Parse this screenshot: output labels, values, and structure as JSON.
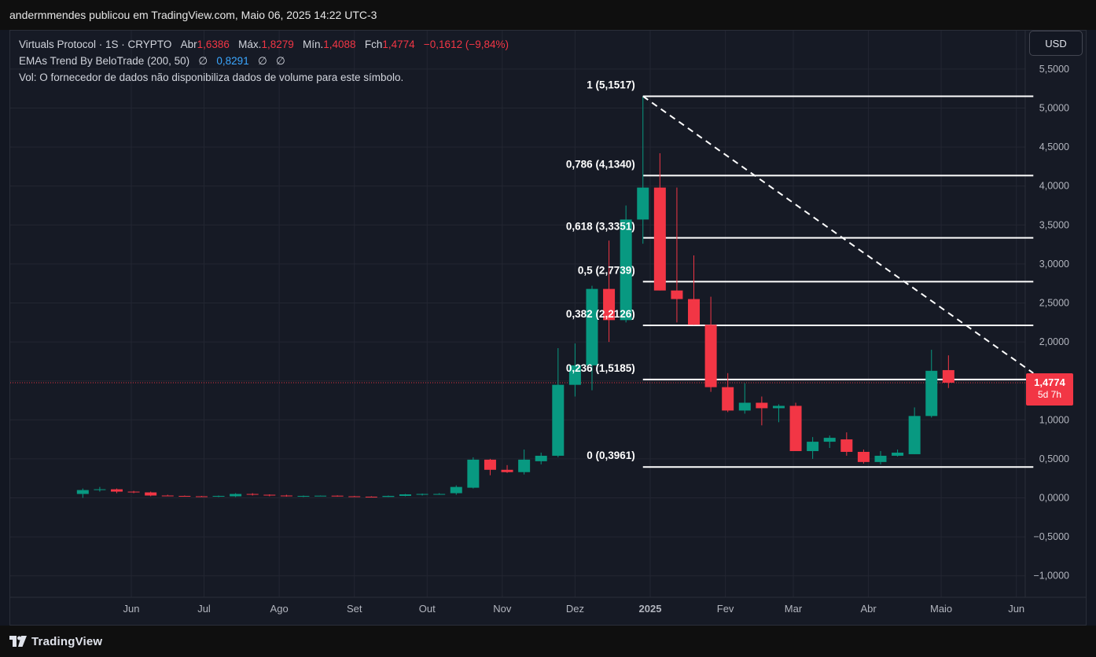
{
  "header": {
    "title": "andermmendes publicou em TradingView.com, Maio 06, 2025 14:22 UTC-3"
  },
  "legend": {
    "symbol": "Virtuals Protocol · 1S · CRYPTO",
    "open_label": "Abr",
    "open": "1,6386",
    "high_label": "Máx.",
    "high": "1,8279",
    "low_label": "Mín.",
    "low": "1,4088",
    "close_label": "Fch",
    "close": "1,4774",
    "change": "−0,1612 (−9,84%)",
    "indicator": "EMAs Trend By BeloTrade (200, 50)",
    "ind_v1": "∅",
    "ind_v2": "0,8291",
    "ind_v3": "∅",
    "ind_v4": "∅",
    "volume_note": "Vol: O fornecedor de dados não disponibiliza dados de volume para este símbolo."
  },
  "currency_button": "USD",
  "price_label": {
    "price": "1,4774",
    "countdown": "5d 7h"
  },
  "brand": "TradingView",
  "colors": {
    "up": "#089981",
    "down": "#f23645",
    "background": "#161a25",
    "grid": "#232632",
    "fib_line": "#ffffff"
  },
  "chart_data": {
    "type": "candlestick",
    "interval": "1 week",
    "y_axis": {
      "min": -1.3,
      "max": 5.9,
      "ticks": [
        "5,5000",
        "5,0000",
        "4,5000",
        "4,0000",
        "3,5000",
        "3,0000",
        "2,5000",
        "2,0000",
        "1,5000",
        "1,0000",
        "0,5000",
        "0,0000",
        "−0,5000",
        "−1,0000"
      ],
      "tick_values": [
        5.5,
        5.0,
        4.5,
        4.0,
        3.5,
        3.0,
        2.5,
        2.0,
        1.5,
        1.0,
        0.5,
        0.0,
        -0.5,
        -1.0
      ]
    },
    "x_axis": {
      "labels": [
        {
          "text": "Jun",
          "date": "2024-06-01"
        },
        {
          "text": "Jul",
          "date": "2024-07-01"
        },
        {
          "text": "Ago",
          "date": "2024-08-01"
        },
        {
          "text": "Set",
          "date": "2024-09-01"
        },
        {
          "text": "Out",
          "date": "2024-10-01"
        },
        {
          "text": "Nov",
          "date": "2024-11-01"
        },
        {
          "text": "Dez",
          "date": "2024-12-01"
        },
        {
          "text": "2025",
          "date": "2025-01-01",
          "bold": true
        },
        {
          "text": "Fev",
          "date": "2025-02-01"
        },
        {
          "text": "Mar",
          "date": "2025-03-01"
        },
        {
          "text": "Abr",
          "date": "2025-04-01"
        },
        {
          "text": "Maio",
          "date": "2025-05-01"
        },
        {
          "text": "Jun",
          "date": "2025-06-01"
        }
      ]
    },
    "candles": [
      {
        "date": "2024-05-12",
        "o": 0.05,
        "h": 0.12,
        "l": 0.0,
        "c": 0.1
      },
      {
        "date": "2024-05-19",
        "o": 0.1,
        "h": 0.14,
        "l": 0.08,
        "c": 0.11
      },
      {
        "date": "2024-05-26",
        "o": 0.11,
        "h": 0.12,
        "l": 0.06,
        "c": 0.08
      },
      {
        "date": "2024-06-02",
        "o": 0.08,
        "h": 0.09,
        "l": 0.06,
        "c": 0.07
      },
      {
        "date": "2024-06-09",
        "o": 0.07,
        "h": 0.08,
        "l": 0.02,
        "c": 0.03
      },
      {
        "date": "2024-06-16",
        "o": 0.03,
        "h": 0.04,
        "l": 0.02,
        "c": 0.025
      },
      {
        "date": "2024-06-23",
        "o": 0.025,
        "h": 0.03,
        "l": 0.015,
        "c": 0.02
      },
      {
        "date": "2024-06-30",
        "o": 0.02,
        "h": 0.025,
        "l": 0.01,
        "c": 0.015
      },
      {
        "date": "2024-07-07",
        "o": 0.015,
        "h": 0.03,
        "l": 0.01,
        "c": 0.025
      },
      {
        "date": "2024-07-14",
        "o": 0.02,
        "h": 0.06,
        "l": 0.01,
        "c": 0.05
      },
      {
        "date": "2024-07-21",
        "o": 0.05,
        "h": 0.06,
        "l": 0.03,
        "c": 0.04
      },
      {
        "date": "2024-07-28",
        "o": 0.04,
        "h": 0.045,
        "l": 0.02,
        "c": 0.03
      },
      {
        "date": "2024-08-04",
        "o": 0.03,
        "h": 0.04,
        "l": 0.015,
        "c": 0.02
      },
      {
        "date": "2024-08-11",
        "o": 0.02,
        "h": 0.03,
        "l": 0.01,
        "c": 0.025
      },
      {
        "date": "2024-08-18",
        "o": 0.025,
        "h": 0.03,
        "l": 0.02,
        "c": 0.028
      },
      {
        "date": "2024-08-25",
        "o": 0.028,
        "h": 0.032,
        "l": 0.015,
        "c": 0.02
      },
      {
        "date": "2024-09-01",
        "o": 0.02,
        "h": 0.025,
        "l": 0.01,
        "c": 0.015
      },
      {
        "date": "2024-09-08",
        "o": 0.015,
        "h": 0.02,
        "l": 0.01,
        "c": 0.012
      },
      {
        "date": "2024-09-15",
        "o": 0.012,
        "h": 0.03,
        "l": 0.01,
        "c": 0.025
      },
      {
        "date": "2024-09-22",
        "o": 0.025,
        "h": 0.05,
        "l": 0.02,
        "c": 0.045
      },
      {
        "date": "2024-09-29",
        "o": 0.04,
        "h": 0.055,
        "l": 0.03,
        "c": 0.05
      },
      {
        "date": "2024-10-06",
        "o": 0.05,
        "h": 0.06,
        "l": 0.04,
        "c": 0.05
      },
      {
        "date": "2024-10-13",
        "o": 0.06,
        "h": 0.16,
        "l": 0.04,
        "c": 0.14
      },
      {
        "date": "2024-10-20",
        "o": 0.13,
        "h": 0.52,
        "l": 0.12,
        "c": 0.49
      },
      {
        "date": "2024-10-27",
        "o": 0.49,
        "h": 0.5,
        "l": 0.29,
        "c": 0.36
      },
      {
        "date": "2024-11-03",
        "o": 0.36,
        "h": 0.42,
        "l": 0.32,
        "c": 0.33
      },
      {
        "date": "2024-11-10",
        "o": 0.33,
        "h": 0.62,
        "l": 0.3,
        "c": 0.49
      },
      {
        "date": "2024-11-17",
        "o": 0.47,
        "h": 0.58,
        "l": 0.43,
        "c": 0.54
      },
      {
        "date": "2024-11-24",
        "o": 0.54,
        "h": 1.92,
        "l": 0.52,
        "c": 1.45
      },
      {
        "date": "2024-12-01",
        "o": 1.45,
        "h": 1.98,
        "l": 1.3,
        "c": 1.7
      },
      {
        "date": "2024-12-08",
        "o": 1.7,
        "h": 2.72,
        "l": 1.38,
        "c": 2.68
      },
      {
        "date": "2024-12-15",
        "o": 2.68,
        "h": 3.3,
        "l": 2.0,
        "c": 2.28
      },
      {
        "date": "2024-12-22",
        "o": 2.28,
        "h": 3.75,
        "l": 2.25,
        "c": 3.57
      },
      {
        "date": "2024-12-29",
        "o": 3.57,
        "h": 5.1517,
        "l": 3.26,
        "c": 3.98
      },
      {
        "date": "2025-01-05",
        "o": 3.98,
        "h": 4.42,
        "l": 2.66,
        "c": 2.66
      },
      {
        "date": "2025-01-12",
        "o": 2.66,
        "h": 3.98,
        "l": 2.25,
        "c": 2.55
      },
      {
        "date": "2025-01-19",
        "o": 2.55,
        "h": 3.11,
        "l": 2.22,
        "c": 2.22
      },
      {
        "date": "2025-01-26",
        "o": 2.22,
        "h": 2.58,
        "l": 1.36,
        "c": 1.42
      },
      {
        "date": "2025-02-02",
        "o": 1.42,
        "h": 1.6,
        "l": 1.1,
        "c": 1.12
      },
      {
        "date": "2025-02-09",
        "o": 1.12,
        "h": 1.47,
        "l": 1.08,
        "c": 1.22
      },
      {
        "date": "2025-02-16",
        "o": 1.22,
        "h": 1.3,
        "l": 0.93,
        "c": 1.15
      },
      {
        "date": "2025-02-23",
        "o": 1.15,
        "h": 1.2,
        "l": 0.97,
        "c": 1.18
      },
      {
        "date": "2025-03-02",
        "o": 1.18,
        "h": 1.22,
        "l": 0.6,
        "c": 0.6
      },
      {
        "date": "2025-03-09",
        "o": 0.6,
        "h": 0.78,
        "l": 0.5,
        "c": 0.72
      },
      {
        "date": "2025-03-16",
        "o": 0.72,
        "h": 0.8,
        "l": 0.64,
        "c": 0.77
      },
      {
        "date": "2025-03-23",
        "o": 0.75,
        "h": 0.84,
        "l": 0.54,
        "c": 0.59
      },
      {
        "date": "2025-03-30",
        "o": 0.59,
        "h": 0.62,
        "l": 0.44,
        "c": 0.46
      },
      {
        "date": "2025-04-06",
        "o": 0.46,
        "h": 0.6,
        "l": 0.43,
        "c": 0.54
      },
      {
        "date": "2025-04-13",
        "o": 0.54,
        "h": 0.62,
        "l": 0.53,
        "c": 0.58
      },
      {
        "date": "2025-04-20",
        "o": 0.56,
        "h": 1.16,
        "l": 0.56,
        "c": 1.05
      },
      {
        "date": "2025-04-27",
        "o": 1.05,
        "h": 1.9,
        "l": 1.03,
        "c": 1.63
      },
      {
        "date": "2025-05-04",
        "o": 1.6386,
        "h": 1.8279,
        "l": 1.4088,
        "c": 1.4774
      }
    ],
    "fibonacci": {
      "start_date": "2024-12-29",
      "end_date": "2025-06-08",
      "levels": [
        {
          "ratio": "1",
          "value": 5.1517,
          "label": "1 (5,1517)"
        },
        {
          "ratio": "0,786",
          "value": 4.134,
          "label": "0,786 (4,1340)"
        },
        {
          "ratio": "0,618",
          "value": 3.3351,
          "label": "0,618 (3,3351)"
        },
        {
          "ratio": "0,5",
          "value": 2.7739,
          "label": "0,5 (2,7739)"
        },
        {
          "ratio": "0,382",
          "value": 2.2126,
          "label": "0,382 (2,2126)"
        },
        {
          "ratio": "0,236",
          "value": 1.5185,
          "label": "0,236 (1,5185)"
        },
        {
          "ratio": "0",
          "value": 0.3961,
          "label": "0 (0,3961)"
        }
      ]
    },
    "trendline": {
      "from": {
        "date": "2024-12-29",
        "value": 5.1517
      },
      "to": {
        "date": "2025-06-08",
        "value": 1.6
      },
      "style": "dashed"
    },
    "last_price_line": 1.4774
  }
}
